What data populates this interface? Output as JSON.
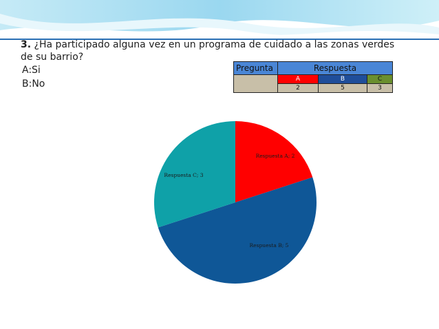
{
  "question": {
    "number": "3.",
    "text": "¿Ha participado alguna vez en un programa de cuidado a las zonas verdes de su barrio?",
    "option_a": "A:Si",
    "option_b": "B:No"
  },
  "table": {
    "pregunta_header": "Pregunta",
    "respuesta_header": "Respuesta",
    "categories": [
      "A",
      "B",
      "C"
    ],
    "values": [
      "2",
      "5",
      "3"
    ]
  },
  "chart_data": {
    "type": "pie",
    "categories": [
      "Respuesta A",
      "Respuesta B",
      "Respuesta C"
    ],
    "values": [
      2,
      5,
      3
    ],
    "labels": [
      "Respuesta A; 2",
      "Respuesta B; 5",
      "Respuesta C; 3"
    ],
    "colors": [
      "#ff0000",
      "#0f5797",
      "#0fa1a8"
    ],
    "legend": "none"
  }
}
